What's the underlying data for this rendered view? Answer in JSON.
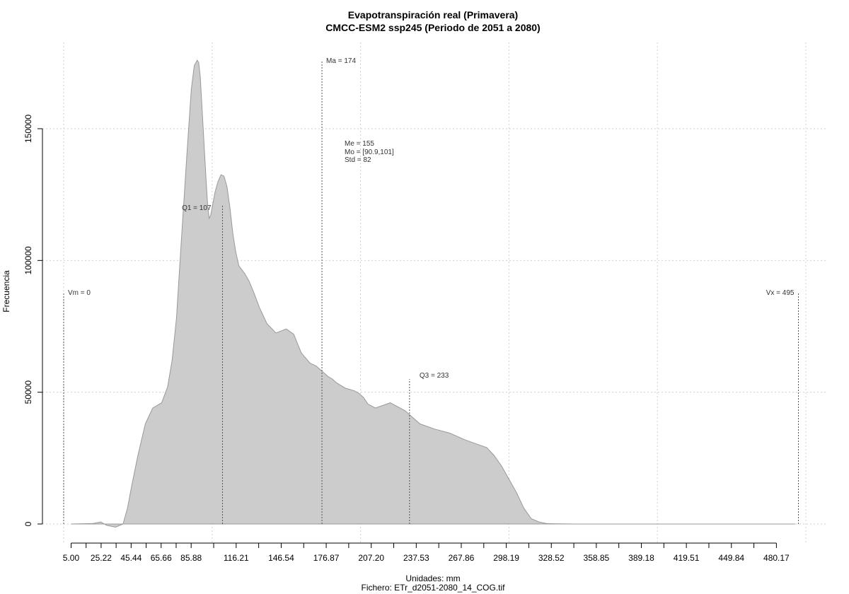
{
  "chart_data": {
    "type": "area",
    "title": "Evapotranspiración real (Primavera)",
    "subtitle": "CMCC-ESM2 ssp245 (Periodo de 2051 a 2080)",
    "xlabel": "Unidades: mm",
    "ylabel": "Frecuencia",
    "footer": "Fichero: ETr_d2051-2080_14_COG.tif",
    "xlim": [
      0,
      500
    ],
    "ylim": [
      -7000,
      180000
    ],
    "x_tick_labels": [
      "5.00",
      "25.22",
      "45.44",
      "65.66",
      "85.88",
      "116.21",
      "146.54",
      "176.87",
      "207.20",
      "237.53",
      "267.86",
      "298.19",
      "328.52",
      "358.85",
      "389.18",
      "419.51",
      "449.84",
      "480.17"
    ],
    "x_tick_values": [
      5.0,
      25.22,
      45.44,
      65.66,
      85.88,
      116.21,
      146.54,
      176.87,
      207.2,
      237.53,
      267.86,
      298.19,
      328.52,
      358.85,
      389.18,
      419.51,
      449.84,
      480.17
    ],
    "y_ticks": [
      0,
      50000,
      100000,
      150000
    ],
    "y_tick_labels": [
      "0",
      "50000",
      "100000",
      "150000"
    ],
    "grid": true,
    "fill_color": "#cccccc",
    "line_color": "#999999",
    "series": [
      {
        "x": [
          5,
          20,
          25,
          29,
          35,
          40,
          43,
          46,
          50,
          55,
          60,
          66,
          70,
          73,
          76,
          79,
          83,
          86,
          88,
          90,
          91,
          92,
          93,
          94,
          95,
          96,
          97,
          98,
          99,
          100,
          102,
          104,
          106,
          108,
          110,
          112,
          114,
          116,
          118,
          120,
          122,
          125,
          128,
          132,
          137,
          143,
          150,
          155,
          160,
          166,
          170,
          174,
          178,
          181,
          184,
          187,
          190,
          193,
          196,
          199,
          202,
          205,
          210,
          220,
          230,
          240,
          250,
          260,
          270,
          280,
          285,
          290,
          295,
          300,
          305,
          310,
          315,
          320,
          325,
          330,
          335,
          340,
          345,
          350,
          355,
          360,
          370,
          380,
          390,
          400,
          410,
          420,
          440,
          460,
          480,
          493
        ],
        "y": [
          0,
          200,
          800,
          -500,
          -1200,
          0,
          6000,
          15000,
          26000,
          38000,
          44000,
          46000,
          52000,
          62000,
          78000,
          105000,
          140000,
          165000,
          174000,
          176000,
          175000,
          170000,
          160000,
          150000,
          140000,
          130000,
          121000,
          116000,
          117000,
          120000,
          126000,
          130000,
          132500,
          132000,
          128000,
          120000,
          110000,
          103000,
          98000,
          96500,
          95000,
          92000,
          88000,
          82000,
          76000,
          72500,
          74000,
          72000,
          65000,
          61000,
          60000,
          58000,
          56000,
          55000,
          53500,
          52500,
          51500,
          51000,
          50500,
          49500,
          48000,
          45500,
          44000,
          46000,
          43000,
          38000,
          36000,
          34500,
          32000,
          30000,
          29000,
          26000,
          22000,
          17000,
          12000,
          6000,
          2000,
          800,
          200,
          100,
          50,
          30,
          10,
          5,
          2,
          1,
          0,
          0,
          0,
          0,
          0,
          0,
          0,
          0,
          0,
          0
        ]
      }
    ],
    "annotations": [
      {
        "label": "Vm = 0",
        "x": 0,
        "y": 88000
      },
      {
        "label": "Q1 = 107",
        "x": 107,
        "y": 121000
      },
      {
        "label": "Ma = 174",
        "x": 174,
        "y": 176000
      },
      {
        "label": "Q3 = 233",
        "x": 233,
        "y": 55000
      },
      {
        "label": "Vx = 495",
        "x": 495,
        "y": 88000
      }
    ],
    "stats": [
      "Me = 155",
      "Mo = [90.9,101]",
      "Std = 82"
    ]
  }
}
